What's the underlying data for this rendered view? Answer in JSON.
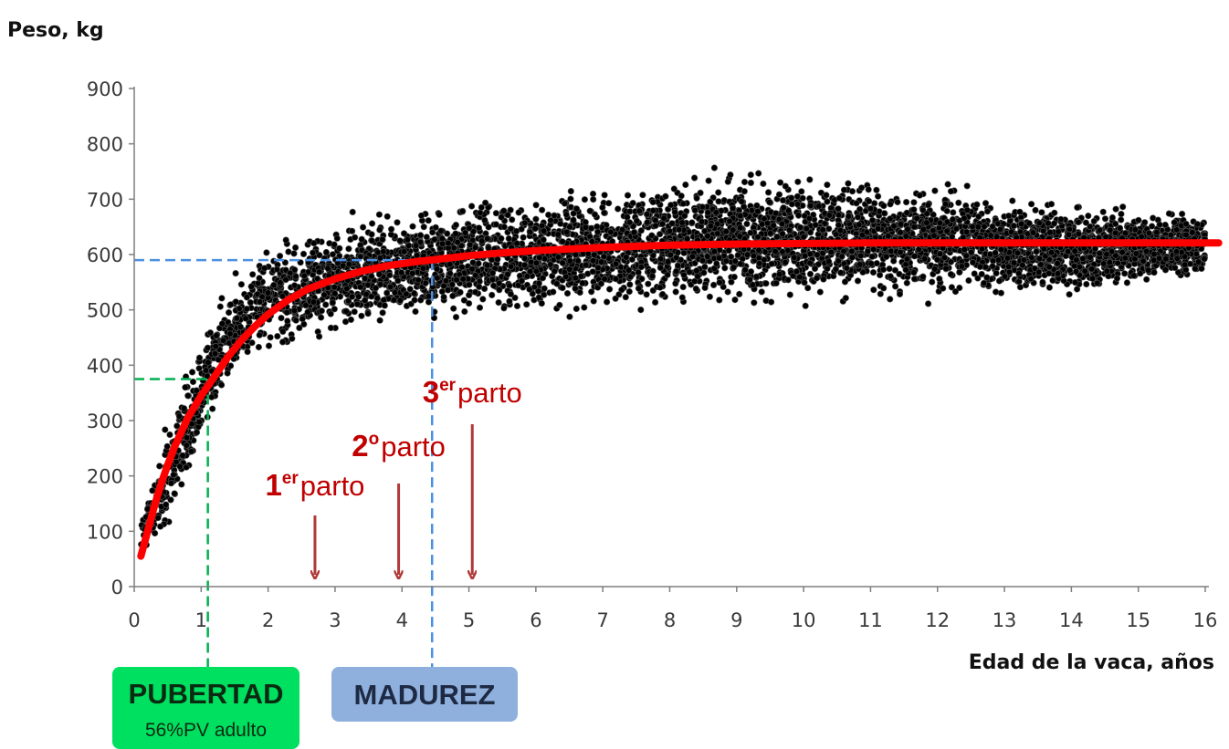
{
  "chart_data": {
    "type": "scatter",
    "ylabel": "Peso, kg",
    "xlabel": "Edad de la vaca, años",
    "xlim": [
      0,
      16
    ],
    "ylim": [
      0,
      900
    ],
    "x_ticks": [
      "0",
      "1",
      "2",
      "3",
      "4",
      "5",
      "6",
      "7",
      "8",
      "9",
      "10",
      "11",
      "12",
      "13",
      "14",
      "15",
      "16"
    ],
    "y_ticks": [
      "0",
      "100",
      "200",
      "300",
      "400",
      "500",
      "600",
      "700",
      "800",
      "900"
    ],
    "grid": false,
    "series": [
      {
        "kind": "scatter",
        "color": "#000000",
        "envelope": [
          {
            "x": 0.1,
            "low": 40,
            "high": 130
          },
          {
            "x": 0.5,
            "low": 100,
            "high": 310
          },
          {
            "x": 1.0,
            "low": 230,
            "high": 470
          },
          {
            "x": 1.5,
            "low": 360,
            "high": 570
          },
          {
            "x": 2.0,
            "low": 410,
            "high": 630
          },
          {
            "x": 3.0,
            "low": 440,
            "high": 670
          },
          {
            "x": 4.0,
            "low": 460,
            "high": 690
          },
          {
            "x": 5.0,
            "low": 470,
            "high": 710
          },
          {
            "x": 7.0,
            "low": 490,
            "high": 730
          },
          {
            "x": 9.0,
            "low": 500,
            "high": 760
          },
          {
            "x": 12.0,
            "low": 510,
            "high": 740
          },
          {
            "x": 14.0,
            "low": 520,
            "high": 700
          },
          {
            "x": 16.0,
            "low": 550,
            "high": 680
          }
        ]
      },
      {
        "kind": "line",
        "color": "#ff0000",
        "x": [
          0.1,
          0.2,
          0.3,
          0.4,
          0.5,
          0.6,
          0.8,
          1.0,
          1.2,
          1.4,
          1.6,
          1.8,
          2.0,
          2.3,
          2.6,
          3.0,
          3.4,
          3.8,
          4.2,
          4.5,
          5.0,
          5.5,
          6.0,
          7.0,
          8.0,
          9.0,
          10.0,
          11.0,
          12.0,
          13.0,
          14.0,
          15.0,
          16.0,
          16.2
        ],
        "y": [
          55,
          100,
          145,
          185,
          220,
          252,
          305,
          345,
          380,
          415,
          445,
          470,
          492,
          518,
          538,
          556,
          570,
          580,
          587,
          591,
          598,
          603,
          607,
          613,
          617,
          619,
          620,
          621,
          621,
          621,
          621,
          621,
          621,
          621
        ]
      }
    ],
    "annotations": {
      "pubertad": {
        "x": 1.1,
        "y": 375,
        "color": "#00b050"
      },
      "madurez": {
        "x": 4.45,
        "y": 590,
        "color": "#4a90e2"
      },
      "partos": [
        {
          "num": "1",
          "sup": "er",
          "word": "parto",
          "x": 2.7
        },
        {
          "num": "2",
          "sup": "o",
          "word": "parto",
          "x": 3.95
        },
        {
          "num": "3",
          "sup": "er",
          "word": "parto",
          "x": 5.05
        }
      ]
    }
  },
  "labels": {
    "pubertad_title": "PUBERTAD",
    "pubertad_sub": "56%PV adulto",
    "madurez_title": "MADUREZ"
  },
  "colors": {
    "curve": "#ff0000",
    "points": "#000000",
    "parto": "#c00000",
    "arrow": "#b03838",
    "pubertad_box": "#00e060",
    "madurez_box": "#8fb0dc"
  }
}
